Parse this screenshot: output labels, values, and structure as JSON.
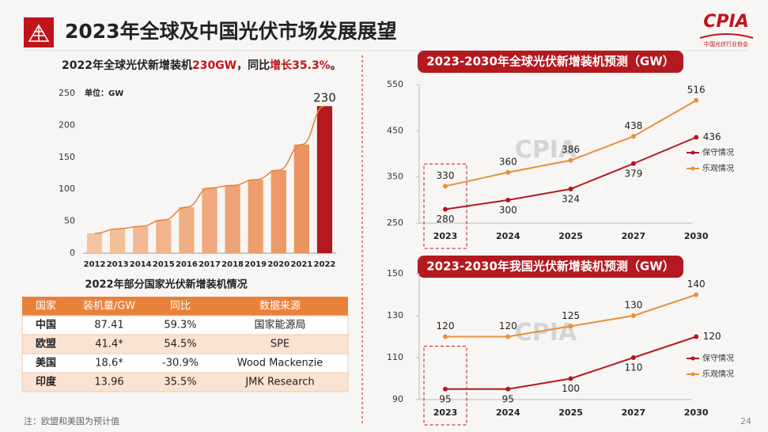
{
  "title": "2023年全球及中国光伏市场发展展望",
  "logo": {
    "name": "CPIA",
    "subtitle": "中国光伏行业协会"
  },
  "page_number": "24",
  "note": "注：欧盟和美国为预计值",
  "table": {
    "title": "2022年部分国家光伏新增装机情况",
    "header": [
      "国家",
      "装机量/GW",
      "同比",
      "数据来源"
    ],
    "rows": [
      [
        "中国",
        "87.41",
        "59.3%",
        "国家能源局"
      ],
      [
        "欧盟",
        "41.4*",
        "54.5%",
        "SPE"
      ],
      [
        "美国",
        "18.6*",
        "-30.9%",
        "Wood Mackenzie"
      ],
      [
        "印度",
        "13.96",
        "35.5%",
        "JMK Research"
      ]
    ]
  },
  "chart_data": [
    {
      "type": "bar",
      "title": [
        {
          "text": "2022年全球光伏新增装机",
          "color": "#222222"
        },
        {
          "text": "230GW",
          "color": "#c0141c"
        },
        {
          "text": "，同比",
          "color": "#222222"
        },
        {
          "text": "增长35.3%",
          "color": "#c0141c"
        },
        {
          "text": "。",
          "color": "#222222"
        }
      ],
      "unit_label": "单位：GW",
      "categories": [
        "2012",
        "2013",
        "2014",
        "2015",
        "2016",
        "2017",
        "2018",
        "2019",
        "2020",
        "2021",
        "2022"
      ],
      "values": [
        31,
        38,
        42,
        52,
        72,
        102,
        106,
        115,
        130,
        170,
        230
      ],
      "colors": [
        "#f4c4a0",
        "#f3bf99",
        "#f2b992",
        "#f1b48b",
        "#f0ae84",
        "#efa97d",
        "#eea376",
        "#ed9e6f",
        "#ec9868",
        "#eb9361",
        "#b3191f"
      ],
      "data_labels": "last",
      "trend_color": "#e8813a",
      "ylim": [
        0,
        250
      ],
      "yticks": [
        0,
        50,
        100,
        150,
        200,
        250
      ]
    },
    {
      "type": "line",
      "title": "2023-2030年全球光伏新增装机预测（GW）",
      "watermark": "CPIA",
      "categories": [
        "2023",
        "2024",
        "2025",
        "2027",
        "2030"
      ],
      "series": [
        {
          "name": "保守情况",
          "color": "#b3191f",
          "values": [
            280,
            300,
            324,
            379,
            436
          ]
        },
        {
          "name": "乐观情况",
          "color": "#e8913a",
          "values": [
            330,
            360,
            386,
            438,
            516
          ]
        }
      ],
      "ylim": [
        250,
        550
      ],
      "yticks": [
        250,
        350,
        450,
        550
      ],
      "legend": "right"
    },
    {
      "type": "line",
      "title": "2023-2030年我国光伏新增装机预测（GW）",
      "watermark": "CPIA",
      "categories": [
        "2023",
        "2024",
        "2025",
        "2027",
        "2030"
      ],
      "series": [
        {
          "name": "保守情况",
          "color": "#b3191f",
          "values": [
            95,
            95,
            100,
            110,
            120
          ]
        },
        {
          "name": "乐观情况",
          "color": "#e8913a",
          "values": [
            120,
            120,
            125,
            130,
            140
          ]
        }
      ],
      "ylim": [
        90,
        150
      ],
      "yticks": [
        90,
        110,
        130,
        150
      ],
      "legend": "right"
    }
  ]
}
